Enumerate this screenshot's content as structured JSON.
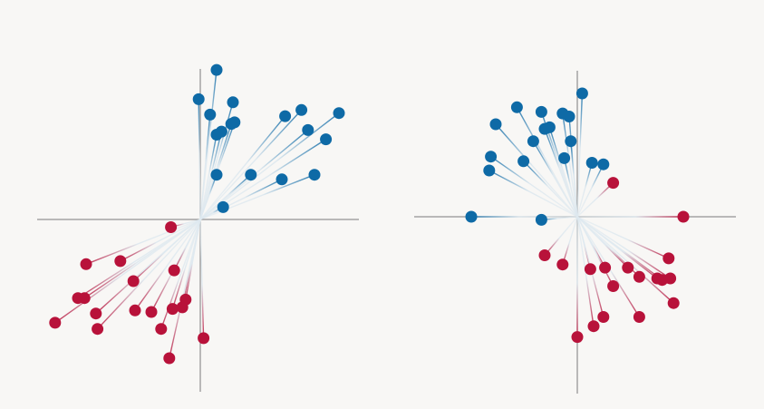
{
  "colors": {
    "background": "#f8f7f5",
    "axis": "#7a7a7a",
    "positive": "#0e6aa6",
    "negative": "#b8123a",
    "fade": "#dde8ef"
  },
  "chart_data": [
    {
      "type": "scatter",
      "title": "",
      "xlabel": "",
      "ylabel": "",
      "grid": false,
      "legend": "none",
      "xlim": [
        -1,
        1
      ],
      "ylim": [
        -1,
        1
      ],
      "origin": [
        0,
        0
      ],
      "series": [
        {
          "class": "positive",
          "x": [
            0.1,
            -0.01,
            0.2,
            0.06,
            0.21,
            0.13,
            0.19,
            0.1,
            0.52,
            0.62,
            0.85,
            0.66,
            0.77,
            0.1,
            0.31,
            0.5,
            0.7,
            0.14
          ],
          "y": [
            0.97,
            0.78,
            0.76,
            0.68,
            0.63,
            0.57,
            0.62,
            0.55,
            0.67,
            0.71,
            0.69,
            0.58,
            0.52,
            0.29,
            0.29,
            0.26,
            0.29,
            0.08
          ]
        },
        {
          "class": "negative",
          "x": [
            -0.18,
            -0.7,
            -0.49,
            -0.75,
            -0.71,
            -0.41,
            -0.64,
            -0.89,
            -0.63,
            -0.4,
            -0.3,
            -0.17,
            -0.11,
            -0.16,
            -0.09,
            -0.24,
            -0.19,
            0.02
          ],
          "y": [
            -0.05,
            -0.29,
            -0.27,
            -0.51,
            -0.51,
            -0.4,
            -0.61,
            -0.67,
            -0.71,
            -0.59,
            -0.6,
            -0.58,
            -0.57,
            -0.33,
            -0.52,
            -0.71,
            -0.9,
            -0.77
          ]
        }
      ]
    },
    {
      "type": "scatter",
      "title": "",
      "xlabel": "",
      "ylabel": "",
      "grid": false,
      "legend": "none",
      "xlim": [
        -1,
        1
      ],
      "ylim": [
        -1,
        1
      ],
      "origin": [
        0,
        0
      ],
      "series": [
        {
          "class": "positive",
          "x": [
            0.03,
            -0.37,
            -0.22,
            -0.17,
            -0.09,
            -0.05,
            -0.5,
            -0.27,
            -0.2,
            -0.04,
            -0.53,
            -0.33,
            -0.54,
            -0.08,
            0.09,
            0.16,
            -0.65,
            -0.22
          ],
          "y": [
            0.8,
            0.71,
            0.68,
            0.58,
            0.67,
            0.65,
            0.6,
            0.49,
            0.57,
            0.49,
            0.39,
            0.36,
            0.3,
            0.38,
            0.35,
            0.34,
            0.0,
            -0.02
          ]
        },
        {
          "class": "negative",
          "x": [
            0.22,
            0.65,
            -0.2,
            -0.09,
            0.08,
            0.17,
            0.31,
            0.56,
            0.38,
            0.22,
            0.49,
            0.57,
            0.52,
            0.59,
            0.16,
            0.38,
            0.1,
            0.0
          ],
          "y": [
            0.22,
            0.0,
            -0.25,
            -0.31,
            -0.34,
            -0.33,
            -0.33,
            -0.27,
            -0.39,
            -0.45,
            -0.4,
            -0.4,
            -0.41,
            -0.56,
            -0.65,
            -0.65,
            -0.71,
            -0.78
          ]
        }
      ]
    }
  ]
}
